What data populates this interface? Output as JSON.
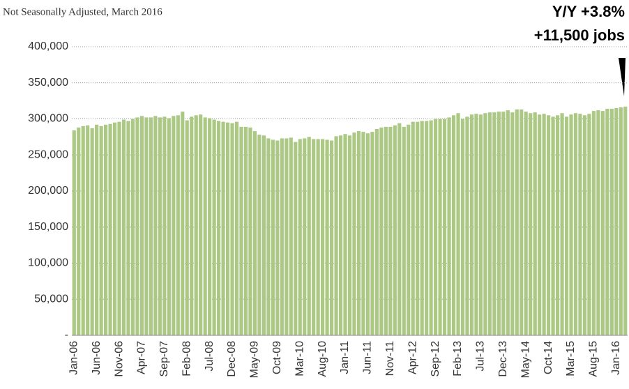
{
  "chart_data": {
    "type": "bar",
    "subtitle": "Not Seasonally Adjusted, March 2016",
    "annotations": [
      "Y/Y  +3.8%",
      "+11,500 jobs"
    ],
    "categories": [
      "Jan-06",
      null,
      null,
      null,
      null,
      "Jun-06",
      null,
      null,
      null,
      null,
      "Nov-06",
      null,
      null,
      null,
      null,
      "Apr-07",
      null,
      null,
      null,
      null,
      "Sep-07",
      null,
      null,
      null,
      null,
      "Feb-08",
      null,
      null,
      null,
      null,
      "Jul-08",
      null,
      null,
      null,
      null,
      "Dec-08",
      null,
      null,
      null,
      null,
      "May-09",
      null,
      null,
      null,
      null,
      "Oct-09",
      null,
      null,
      null,
      null,
      "Mar-10",
      null,
      null,
      null,
      null,
      "Aug-10",
      null,
      null,
      null,
      null,
      "Jan-11",
      null,
      null,
      null,
      null,
      "Jun-11",
      null,
      null,
      null,
      null,
      "Nov-11",
      null,
      null,
      null,
      null,
      "Apr-12",
      null,
      null,
      null,
      null,
      "Sep-12",
      null,
      null,
      null,
      null,
      "Feb-13",
      null,
      null,
      null,
      null,
      "Jul-13",
      null,
      null,
      null,
      null,
      "Dec-13",
      null,
      null,
      null,
      null,
      "May-14",
      null,
      null,
      null,
      null,
      "Oct-14",
      null,
      null,
      null,
      null,
      "Mar-15",
      null,
      null,
      null,
      null,
      "Aug-15",
      null,
      null,
      null,
      null,
      "Jan-16",
      null,
      null
    ],
    "values": [
      284000,
      288000,
      290000,
      291000,
      287000,
      292000,
      290000,
      292000,
      293000,
      295000,
      296000,
      299000,
      297000,
      300000,
      302000,
      304000,
      302000,
      302000,
      304000,
      302000,
      303000,
      301000,
      304000,
      305000,
      310000,
      298000,
      303000,
      305000,
      306000,
      302000,
      301000,
      299000,
      297000,
      296000,
      295000,
      294000,
      296000,
      289000,
      289000,
      288000,
      283000,
      278000,
      277000,
      273000,
      271000,
      270000,
      273000,
      273000,
      274000,
      268000,
      272000,
      273000,
      275000,
      272000,
      272000,
      272000,
      271000,
      270000,
      276000,
      277000,
      279000,
      277000,
      281000,
      283000,
      282000,
      280000,
      282000,
      286000,
      288000,
      289000,
      289000,
      291000,
      294000,
      289000,
      292000,
      296000,
      296000,
      297000,
      297000,
      298000,
      300000,
      300000,
      300000,
      302000,
      305000,
      308000,
      300000,
      303000,
      306000,
      307000,
      306000,
      308000,
      309000,
      309000,
      310000,
      310000,
      312000,
      309000,
      313000,
      313000,
      310000,
      308000,
      309000,
      306000,
      307000,
      305000,
      303000,
      305000,
      308000,
      303000,
      306000,
      308000,
      307000,
      305000,
      307000,
      311000,
      312000,
      311000,
      314000,
      314000,
      315000,
      316000,
      317000
    ],
    "color": "#abc985",
    "ylim": [
      0,
      400000
    ],
    "yticks": [
      {
        "value": 0,
        "label": "-"
      },
      {
        "value": 50000,
        "label": "50,000"
      },
      {
        "value": 100000,
        "label": "100,000"
      },
      {
        "value": 150000,
        "label": "150,000"
      },
      {
        "value": 200000,
        "label": "200,000"
      },
      {
        "value": 250000,
        "label": "250,000"
      },
      {
        "value": 300000,
        "label": "300,000"
      },
      {
        "value": 350000,
        "label": "350,000"
      },
      {
        "value": 400000,
        "label": "400,000"
      }
    ],
    "grid": true
  }
}
